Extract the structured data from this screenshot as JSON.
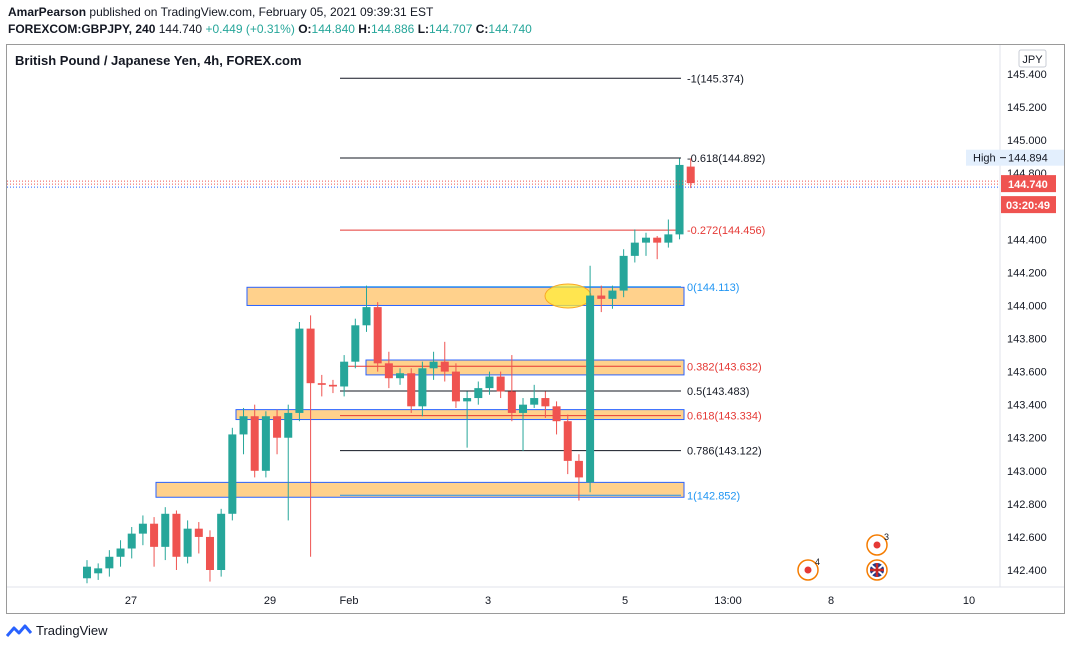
{
  "header": {
    "author": "AmarPearson",
    "published_text": "published on TradingView.com, February 05, 2021 09:39:31 EST",
    "symbol_code": "FOREXCOM:GBPJPY, 240",
    "last": "144.740",
    "change": "+0.449 (+0.31%)",
    "o_label": "O:",
    "o_value": "144.840",
    "h_label": "H:",
    "h_value": "144.886",
    "l_label": "L:",
    "l_value": "144.707",
    "c_label": "C:",
    "c_value": "144.740"
  },
  "title": "British Pound / Japanese Yen, 4h, FOREX.com",
  "currency_label": "JPY",
  "footer": {
    "brand": "TradingView",
    "logo_icon": "tradingview-logo-icon"
  },
  "colors": {
    "up": "#26a69a",
    "down": "#ef5350",
    "zone_fill": "#ffcc80",
    "zone_border": "#2962ff",
    "fib_red": "#e53935",
    "fib_blue": "#2196f3"
  },
  "chart_data": {
    "type": "candlestick",
    "ylim": [
      142.3,
      145.52
    ],
    "y_ticks": [
      "142.400",
      "142.600",
      "142.800",
      "143.000",
      "143.200",
      "143.400",
      "143.600",
      "143.800",
      "144.000",
      "144.200",
      "144.400",
      "144.600",
      "144.800",
      "145.000",
      "145.200",
      "145.400"
    ],
    "x_ticks": [
      "27",
      "29",
      "Feb",
      "3",
      "5",
      "13:00",
      "8",
      "10"
    ],
    "price_badge": "144.740",
    "countdown_badge": "03:20:49",
    "high_marker": {
      "label": "High",
      "value": "144.894"
    },
    "fib_levels": [
      {
        "ratio": "-1",
        "price": 145.374,
        "label": "-1(145.374)",
        "color": "#131722"
      },
      {
        "ratio": "-0.618",
        "price": 144.892,
        "label": "-0.618(144.892)",
        "color": "#131722"
      },
      {
        "ratio": "-0.272",
        "price": 144.456,
        "label": "-0.272(144.456)",
        "color": "#e53935"
      },
      {
        "ratio": "0",
        "price": 144.113,
        "label": "0(144.113)",
        "color": "#2196f3"
      },
      {
        "ratio": "0.382",
        "price": 143.632,
        "label": "0.382(143.632)",
        "color": "#e53935"
      },
      {
        "ratio": "0.5",
        "price": 143.483,
        "label": "0.5(143.483)",
        "color": "#131722"
      },
      {
        "ratio": "0.618",
        "price": 143.334,
        "label": "0.618(143.334)",
        "color": "#e53935"
      },
      {
        "ratio": "0.786",
        "price": 143.122,
        "label": "0.786(143.122)",
        "color": "#131722"
      },
      {
        "ratio": "1",
        "price": 142.852,
        "label": "1(142.852)",
        "color": "#2196f3"
      }
    ],
    "zones": [
      {
        "top": 144.11,
        "bottom": 144.0
      },
      {
        "top": 143.67,
        "bottom": 143.58
      },
      {
        "top": 143.37,
        "bottom": 143.31
      },
      {
        "top": 142.93,
        "bottom": 142.84
      }
    ],
    "candles": [
      [
        142.35,
        142.42,
        142.46,
        142.32
      ],
      [
        142.38,
        142.41,
        142.44,
        142.34
      ],
      [
        142.41,
        142.48,
        142.52,
        142.36
      ],
      [
        142.48,
        142.53,
        142.58,
        142.42
      ],
      [
        142.53,
        142.62,
        142.66,
        142.47
      ],
      [
        142.62,
        142.68,
        142.73,
        142.55
      ],
      [
        142.68,
        142.54,
        142.72,
        142.42
      ],
      [
        142.54,
        142.74,
        142.78,
        142.46
      ],
      [
        142.74,
        142.48,
        142.76,
        142.4
      ],
      [
        142.48,
        142.65,
        142.7,
        142.44
      ],
      [
        142.65,
        142.6,
        142.69,
        142.5
      ],
      [
        142.6,
        142.4,
        142.64,
        142.33
      ],
      [
        142.4,
        142.74,
        142.77,
        142.36
      ],
      [
        142.74,
        143.22,
        143.26,
        142.7
      ],
      [
        143.22,
        143.33,
        143.38,
        143.1
      ],
      [
        143.33,
        143.0,
        143.4,
        142.96
      ],
      [
        143.0,
        143.33,
        143.36,
        142.96
      ],
      [
        143.33,
        143.2,
        143.37,
        143.1
      ],
      [
        143.2,
        143.35,
        143.4,
        142.7
      ],
      [
        143.35,
        143.86,
        143.9,
        143.3
      ],
      [
        143.86,
        143.53,
        143.94,
        142.48
      ],
      [
        143.53,
        143.52,
        143.58,
        143.45
      ],
      [
        143.52,
        143.51,
        143.55,
        143.47
      ],
      [
        143.51,
        143.66,
        143.7,
        143.45
      ],
      [
        143.66,
        143.88,
        143.92,
        143.62
      ],
      [
        143.88,
        143.99,
        144.12,
        143.84
      ],
      [
        143.99,
        143.65,
        144.02,
        143.6
      ],
      [
        143.65,
        143.56,
        143.72,
        143.5
      ],
      [
        143.56,
        143.59,
        143.62,
        143.52
      ],
      [
        143.59,
        143.39,
        143.62,
        143.35
      ],
      [
        143.39,
        143.62,
        143.66,
        143.33
      ],
      [
        143.62,
        143.66,
        143.72,
        143.55
      ],
      [
        143.66,
        143.6,
        143.78,
        143.54
      ],
      [
        143.6,
        143.42,
        143.65,
        143.38
      ],
      [
        143.42,
        143.44,
        143.48,
        143.14
      ],
      [
        143.44,
        143.5,
        143.54,
        143.4
      ],
      [
        143.5,
        143.57,
        143.6,
        143.46
      ],
      [
        143.57,
        143.48,
        143.6,
        143.44
      ],
      [
        143.48,
        143.35,
        143.7,
        143.3
      ],
      [
        143.35,
        143.4,
        143.44,
        143.12
      ],
      [
        143.4,
        143.44,
        143.52,
        143.38
      ],
      [
        143.44,
        143.39,
        143.48,
        143.32
      ],
      [
        143.39,
        143.3,
        143.42,
        143.22
      ],
      [
        143.3,
        143.06,
        143.34,
        142.98
      ],
      [
        143.06,
        142.96,
        143.1,
        142.82
      ],
      [
        142.93,
        144.06,
        144.24,
        142.87
      ],
      [
        144.06,
        144.04,
        144.12,
        143.96
      ],
      [
        144.04,
        144.09,
        144.12,
        143.98
      ],
      [
        144.09,
        144.3,
        144.34,
        144.05
      ],
      [
        144.3,
        144.38,
        144.46,
        144.26
      ],
      [
        144.38,
        144.41,
        144.44,
        144.3
      ],
      [
        144.41,
        144.38,
        144.42,
        144.28
      ],
      [
        144.38,
        144.43,
        144.52,
        144.35
      ],
      [
        144.43,
        144.85,
        144.89,
        144.4
      ],
      [
        144.84,
        144.74,
        144.89,
        144.71
      ]
    ],
    "annotations": [
      {
        "kind": "event-marker",
        "label": "4",
        "icon": "event-dot-icon"
      },
      {
        "kind": "event-marker",
        "label": "3",
        "icon": "event-dot-icon"
      },
      {
        "kind": "event-marker",
        "label": "",
        "icon": "uk-flag-icon"
      }
    ]
  }
}
